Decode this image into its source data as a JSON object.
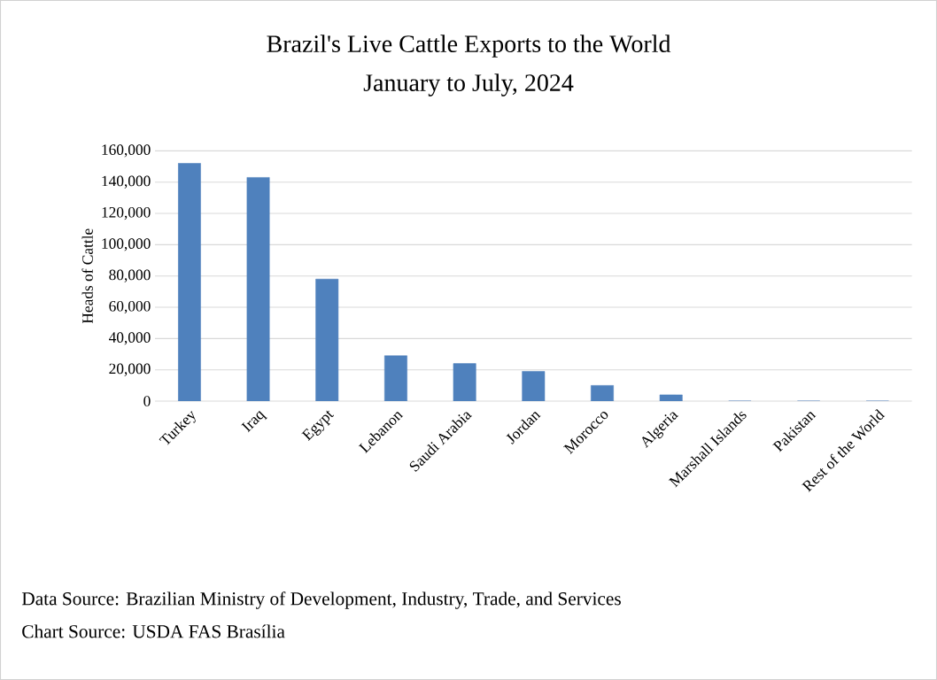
{
  "chart_data": {
    "type": "bar",
    "title": "Brazil's Live Cattle Exports to the World",
    "subtitle": "January to July, 2024",
    "ylabel": "Heads of Cattle",
    "categories": [
      "Turkey",
      "Iraq",
      "Egypt",
      "Lebanon",
      "Saudi Arabia",
      "Jordan",
      "Morocco",
      "Algeria",
      "Marshall Islands",
      "Pakistan",
      "Rest of the World"
    ],
    "values": [
      152000,
      143000,
      78000,
      29000,
      24000,
      19000,
      10000,
      4000,
      0,
      0,
      0
    ],
    "color": "#4f81bd",
    "ylim": [
      0,
      160000
    ],
    "yticks": [
      {
        "value": 0,
        "label": "0"
      },
      {
        "value": 20000,
        "label": "20,000"
      },
      {
        "value": 40000,
        "label": "40,000"
      },
      {
        "value": 60000,
        "label": "60,000"
      },
      {
        "value": 80000,
        "label": "80,000"
      },
      {
        "value": 100000,
        "label": "100,000"
      },
      {
        "value": 120000,
        "label": "120,000"
      },
      {
        "value": 140000,
        "label": "140,000"
      },
      {
        "value": 160000,
        "label": "160,000"
      }
    ],
    "grid": "y",
    "annotations": [
      "Data Source: Brazilian Ministry of Development, Industry, Trade, and Services",
      "Chart Source: USDA FAS Brasília"
    ]
  }
}
